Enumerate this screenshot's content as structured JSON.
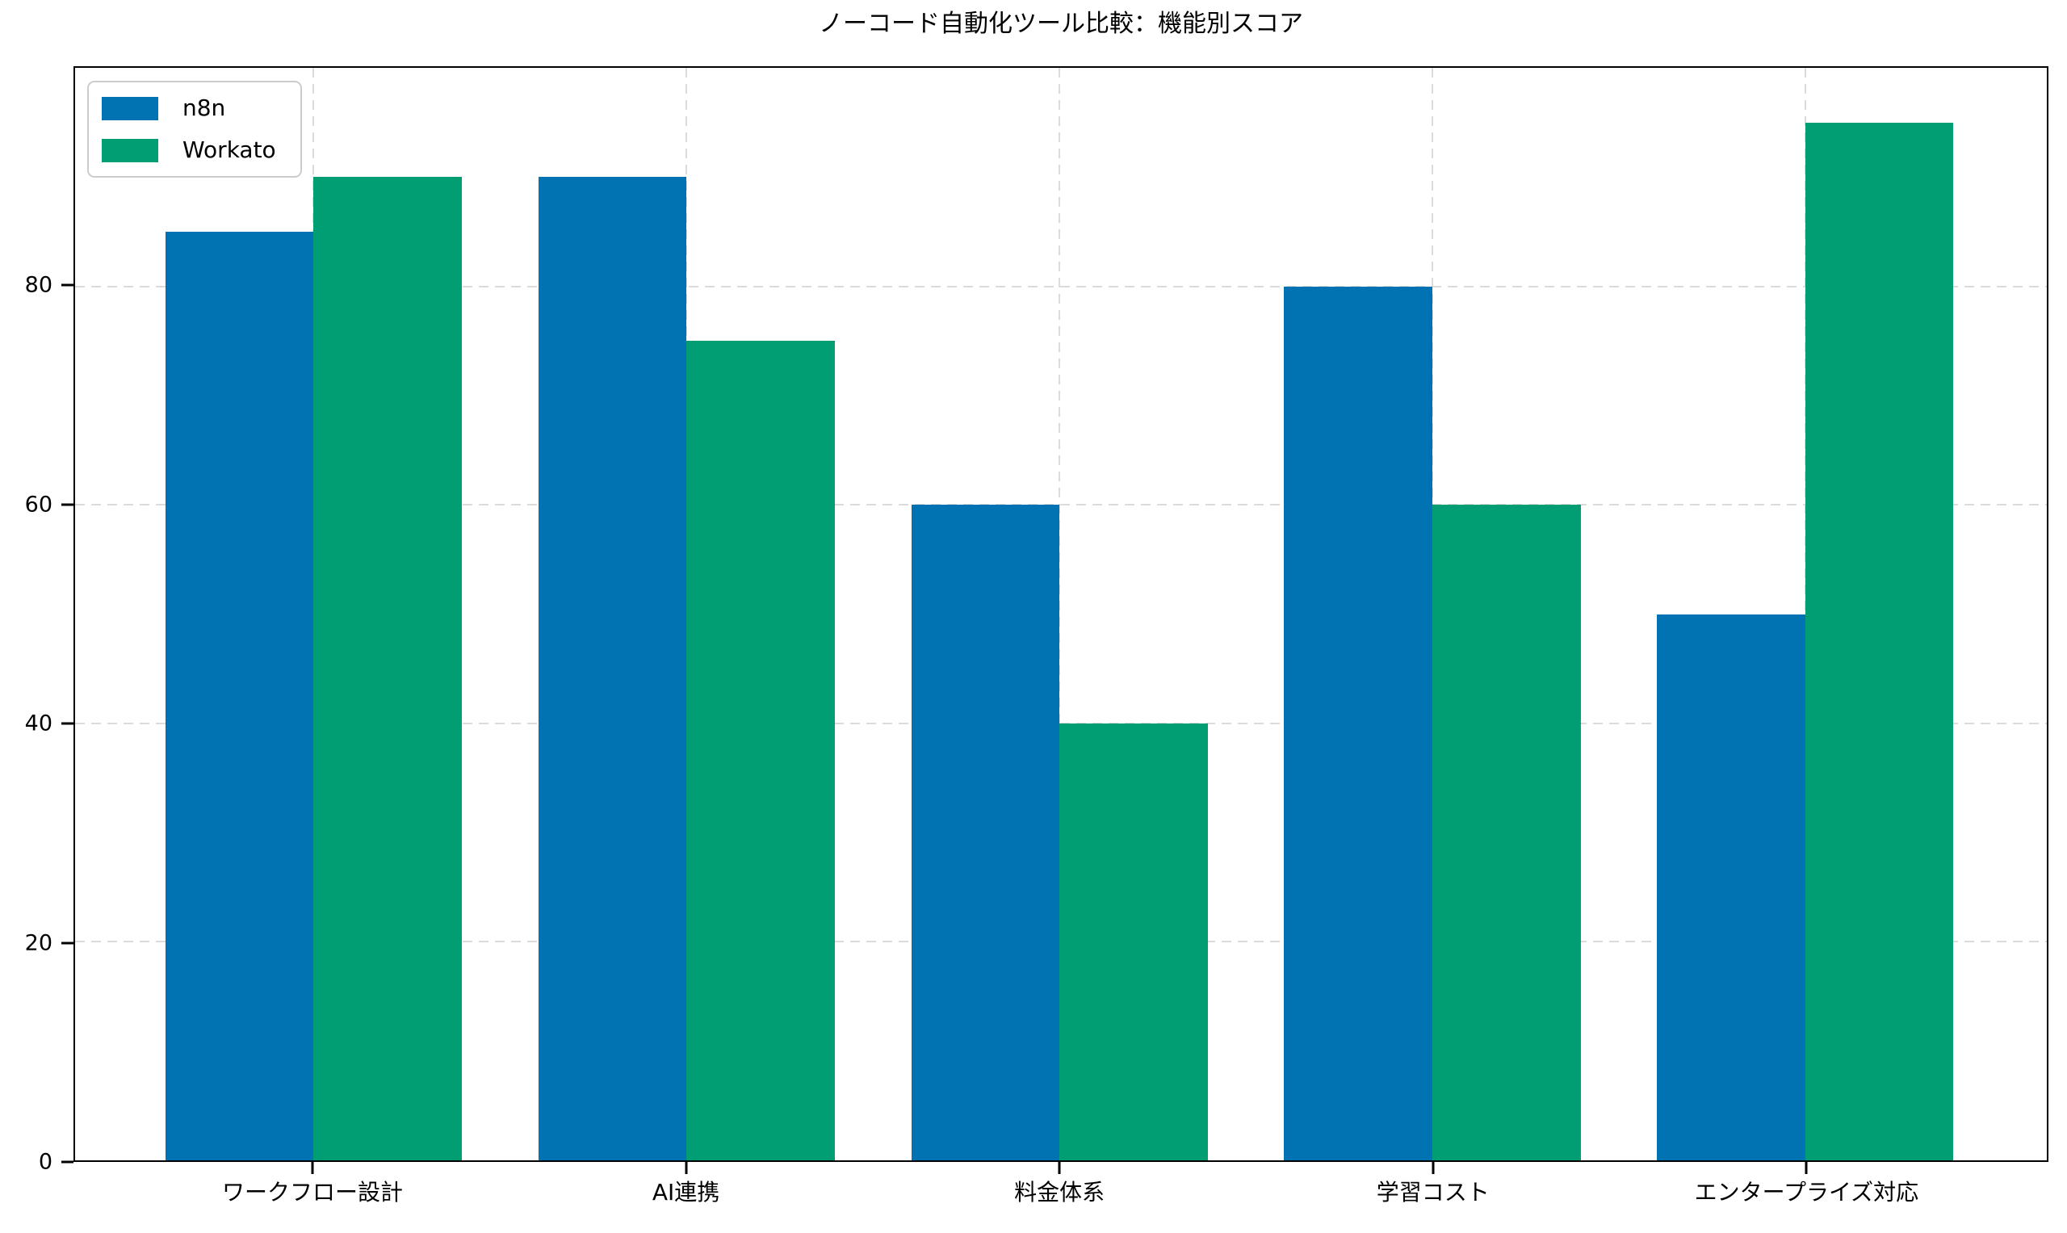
{
  "chart_data": {
    "type": "bar",
    "title": "ノーコード自動化ツール比較：機能別スコア",
    "categories": [
      "ワークフロー設計",
      "AI連携",
      "料金体系",
      "学習コスト",
      "エンタープライズ対応"
    ],
    "series": [
      {
        "name": "n8n",
        "color": "#0173b2",
        "values": [
          85,
          90,
          60,
          80,
          50
        ]
      },
      {
        "name": "Workato",
        "color": "#029e73",
        "values": [
          90,
          75,
          40,
          60,
          95
        ]
      }
    ],
    "legend": [
      "n8n",
      "Workato"
    ],
    "legend_position": "upper left",
    "xlabel": "",
    "ylabel": "",
    "yticks": [
      0,
      20,
      40,
      60,
      80
    ],
    "ylim": [
      0,
      100
    ],
    "grid": "dashed both axes, behind bars",
    "gridline_color": "#dbdbdb",
    "axis_color": "#000000",
    "background_color": "#ffffff",
    "legend_border_color": "#cccccc"
  }
}
